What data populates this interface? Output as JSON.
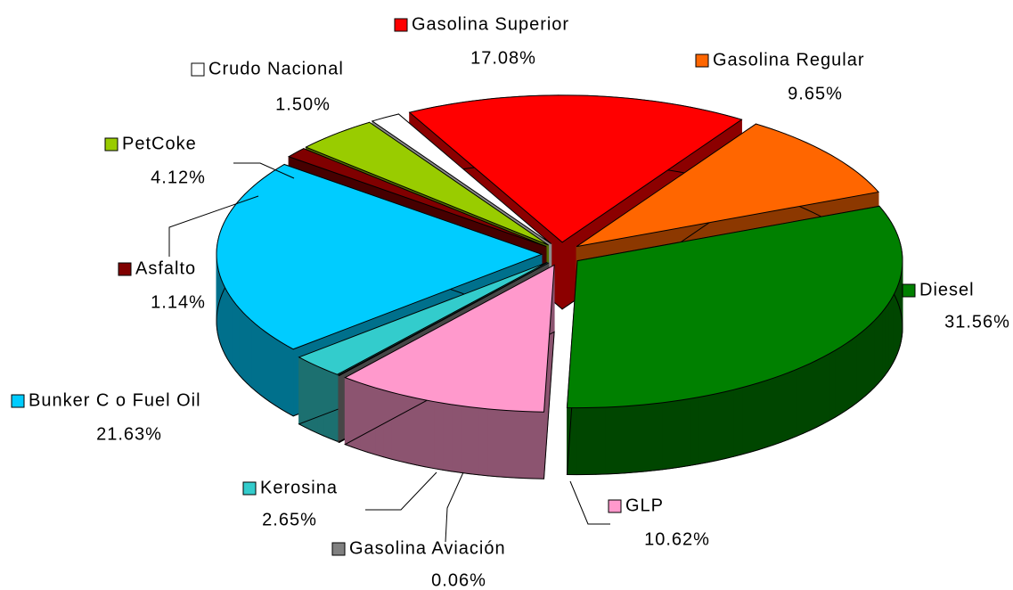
{
  "chart_data": {
    "type": "pie",
    "categories": [
      "Gasolina Superior",
      "Gasolina Regular",
      "Diesel",
      "GLP",
      "Gasolina Aviación",
      "Kerosina",
      "Bunker C o Fuel Oil",
      "Asfalto",
      "PetCoke",
      "Crudo Nacional"
    ],
    "values": [
      17.08,
      9.65,
      31.56,
      10.62,
      0.06,
      2.65,
      21.63,
      1.14,
      4.12,
      1.5
    ],
    "value_labels": [
      "17.08%",
      "9.65%",
      "31.56%",
      "10.62%",
      "0.06%",
      "2.65%",
      "21.63%",
      "1.14%",
      "4.12%",
      "1.50%"
    ],
    "colors": [
      "#ff0000",
      "#ff6600",
      "#008000",
      "#ff99cc",
      "#808080",
      "#33cccc",
      "#00ccff",
      "#800000",
      "#99cc00",
      "#ffffff"
    ]
  }
}
